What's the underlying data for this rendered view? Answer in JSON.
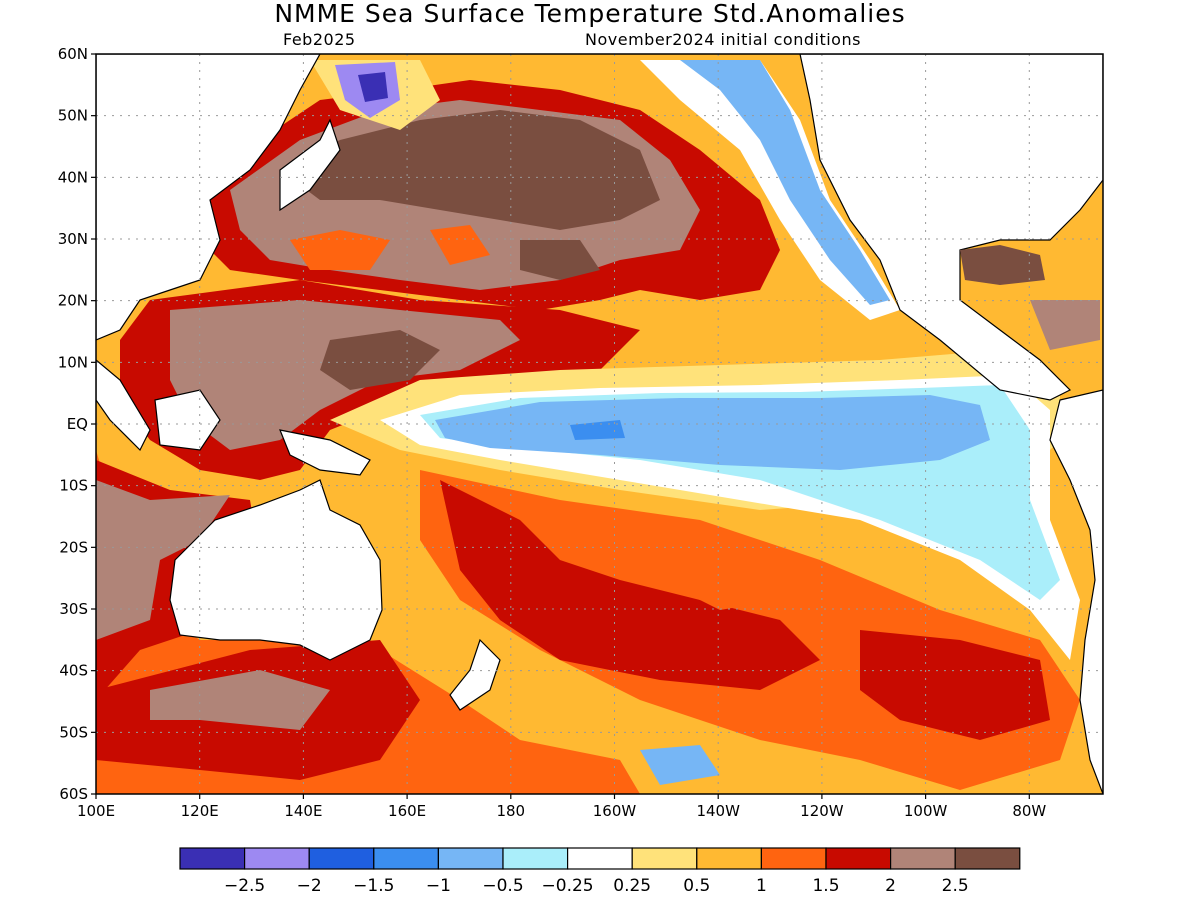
{
  "title": "NMME Sea Surface Temperature Std.Anomalies",
  "valid_month": "Feb2025",
  "initial_conditions": "November2024 initial conditions",
  "map": {
    "lat_labels": [
      "60N",
      "50N",
      "40N",
      "30N",
      "20N",
      "10N",
      "EQ",
      "10S",
      "20S",
      "30S",
      "40S",
      "50S",
      "60S"
    ],
    "lon_labels": [
      "100E",
      "120E",
      "140E",
      "160E",
      "180",
      "160W",
      "140W",
      "120W",
      "100W",
      "80W"
    ]
  },
  "colorbar": {
    "colors": [
      "#3a2fb4",
      "#9d89f2",
      "#1f5fe0",
      "#3b8ef0",
      "#76b6f5",
      "#aaeefa",
      "#ffffff",
      "#ffe27a",
      "#ffb932",
      "#ff6410",
      "#c80a00",
      "#b08478",
      "#7a4e40"
    ],
    "labels": [
      "−2.5",
      "−2",
      "−1.5",
      "−1",
      "−0.5",
      "−0.25",
      "0.25",
      "0.5",
      "1",
      "1.5",
      "2",
      "2.5"
    ]
  }
}
